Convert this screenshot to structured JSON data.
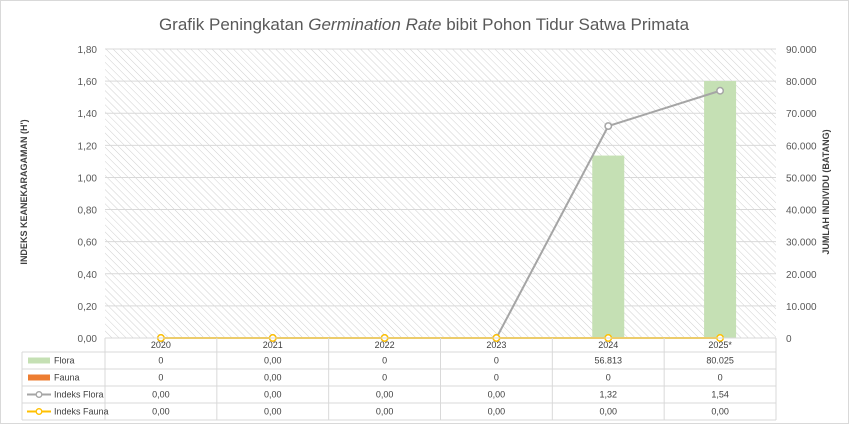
{
  "chart_data": {
    "type": "bar",
    "title": "Grafik Peningkatan ",
    "title_italic": "Germination Rate",
    "title_rest": " bibit Pohon Tidur Satwa Primata",
    "ylabel": "INDEKS KEANEKARAGAMAN (H')",
    "y2label": "JUMLAH INDIVIDU (BATANG)",
    "categories": [
      "2020",
      "2021",
      "2022",
      "2023",
      "2024",
      "2025*"
    ],
    "ylim": [
      0,
      1.8
    ],
    "y_ticks": [
      "0,00",
      "0,20",
      "0,40",
      "0,60",
      "0,80",
      "1,00",
      "1,20",
      "1,40",
      "1,60",
      "1,80"
    ],
    "y2lim": [
      0,
      90000
    ],
    "y2_ticks": [
      "0",
      "10.000",
      "20.000",
      "30.000",
      "40.000",
      "50.000",
      "60.000",
      "70.000",
      "80.000",
      "90.000"
    ],
    "grid": true,
    "legend": "data-table",
    "series": [
      {
        "name": "Flora",
        "type": "bar",
        "axis": "right",
        "color": "#c5e0b4",
        "values": [
          0,
          0,
          0,
          0,
          56813,
          80025
        ],
        "labels": [
          "0",
          "0,00",
          "0",
          "0",
          "56.813",
          "80.025"
        ]
      },
      {
        "name": "Fauna",
        "type": "bar",
        "axis": "right",
        "color": "#ed7d31",
        "values": [
          0,
          0,
          0,
          0,
          0,
          0
        ],
        "labels": [
          "0",
          "0,00",
          "0",
          "0",
          "0",
          "0"
        ]
      },
      {
        "name": "Indeks Flora",
        "type": "line",
        "axis": "left",
        "color": "#a5a5a5",
        "values": [
          0,
          0,
          0,
          0,
          1.32,
          1.54
        ],
        "labels": [
          "0,00",
          "0,00",
          "0,00",
          "0,00",
          "1,32",
          "1,54"
        ]
      },
      {
        "name": "Indeks Fauna",
        "type": "line",
        "axis": "left",
        "color": "#ffc000",
        "values": [
          0,
          0,
          0,
          0,
          0,
          0
        ],
        "labels": [
          "0,00",
          "0,00",
          "0,00",
          "0,00",
          "0,00",
          "0,00"
        ]
      }
    ]
  }
}
